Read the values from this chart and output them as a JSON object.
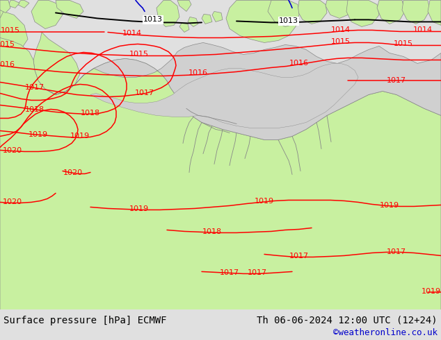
{
  "title_left": "Surface pressure [hPa] ECMWF",
  "title_right": "Th 06-06-2024 12:00 UTC (12+24)",
  "watermark": "©weatheronline.co.uk",
  "land_color": "#c8f0a0",
  "sea_color": "#d0d0d0",
  "isobar_color_red": "#ff0000",
  "isobar_color_black": "#000000",
  "isobar_color_blue": "#0000cc",
  "bottom_bar_color": "#e0e0e0",
  "text_color_left": "#000000",
  "text_color_right": "#000000",
  "text_color_watermark": "#0000cc",
  "font_size_bottom": 10,
  "font_size_labels": 8,
  "figsize": [
    6.34,
    4.9
  ],
  "dpi": 100
}
